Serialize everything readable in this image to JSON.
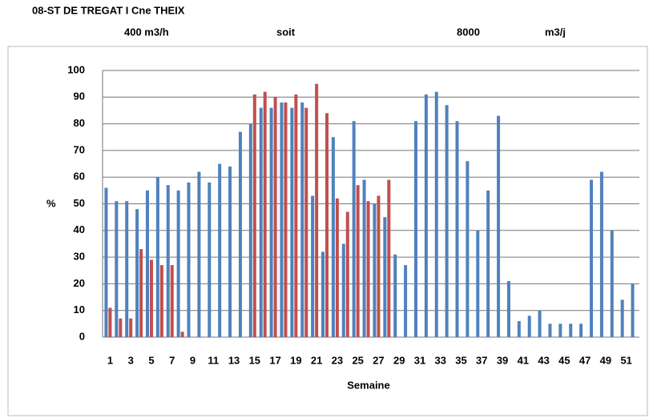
{
  "chart_data": {
    "type": "bar",
    "title": "08-ST DE TREGAT I Cne THEIX",
    "annotations": [
      "400  m3/h",
      "soit",
      "8000",
      "m3/j"
    ],
    "ylabel": "%",
    "xlabel": "Semaine",
    "categories": [
      "1",
      null,
      "3",
      null,
      "5",
      null,
      "7",
      null,
      "9",
      null,
      "11",
      null,
      "13",
      null,
      "15",
      null,
      "17",
      null,
      "19",
      null,
      "21",
      null,
      "23",
      null,
      "25",
      null,
      "27",
      null,
      "29",
      null,
      "31",
      null,
      "33",
      null,
      "35",
      null,
      "37",
      null,
      "39",
      null,
      "41",
      null,
      "43",
      null,
      "45",
      null,
      "47",
      null,
      "49",
      null,
      "51",
      null
    ],
    "series": [
      {
        "color": "#4f81bd",
        "values": [
          56,
          51,
          51,
          48,
          55,
          60,
          57,
          55,
          58,
          62,
          58,
          65,
          64,
          77,
          80,
          86,
          86,
          88,
          86,
          88,
          53,
          32,
          75,
          35,
          81,
          59,
          50,
          45,
          31,
          27,
          81,
          91,
          92,
          87,
          81,
          66,
          40,
          55,
          83,
          21,
          6,
          8,
          10,
          5,
          5,
          5,
          5,
          59,
          62,
          40,
          14,
          20
        ]
      },
      {
        "color": "#c0504d",
        "values": [
          11,
          7,
          7,
          33,
          29,
          27,
          27,
          2,
          null,
          null,
          null,
          null,
          null,
          null,
          91,
          92,
          90,
          88,
          91,
          86,
          95,
          84,
          52,
          47,
          57,
          51,
          53,
          59,
          null,
          null,
          null,
          null,
          null,
          null,
          null,
          null,
          null,
          null,
          null,
          null,
          null,
          null,
          null,
          null,
          null,
          null,
          null,
          null,
          null,
          null,
          null,
          null
        ]
      }
    ],
    "ylim": [
      0,
      100
    ],
    "yticks": [
      0,
      10,
      20,
      30,
      40,
      50,
      60,
      70,
      80,
      90,
      100
    ],
    "grid": true
  }
}
